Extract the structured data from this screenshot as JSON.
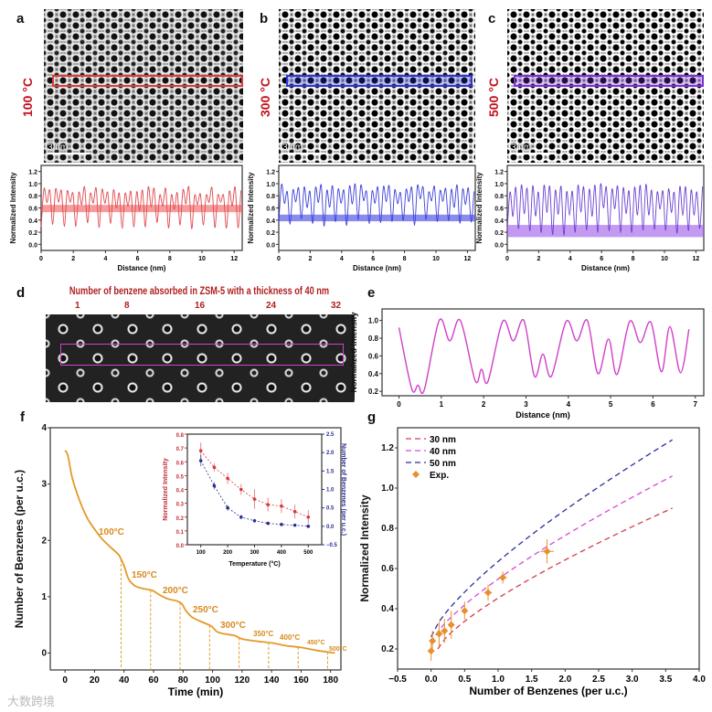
{
  "panels": {
    "a": "a",
    "b": "b",
    "c": "c",
    "d": "d",
    "e": "e",
    "f": "f",
    "g": "g"
  },
  "temps": [
    "100 °C",
    "300 °C",
    "500 °C"
  ],
  "scalebar": "3 nm",
  "roi_colors": [
    "#e03a3a",
    "#2f35d8",
    "#7b2fd8"
  ],
  "d_title": "Number of benzene absorbed in ZSM-5 with a thickness of 40 nm",
  "d_numbers": [
    "1",
    "8",
    "16",
    "24",
    "32"
  ],
  "watermark": "大数跨境",
  "chart_data": [
    {
      "id": "a",
      "type": "line",
      "xlabel": "Distance (nm)",
      "ylabel": "Normalized Intensity",
      "xlim": [
        0,
        12.5
      ],
      "ylim": [
        -0.1,
        1.3
      ],
      "xticks": [
        0,
        2,
        4,
        6,
        8,
        10,
        12
      ],
      "yticks": [
        0.0,
        0.2,
        0.4,
        0.6,
        0.8,
        1.0,
        1.2
      ],
      "band": [
        0.53,
        0.65
      ],
      "color": "#e0474c",
      "band_color": "#f05a5a",
      "profile": {
        "period_nm": 0.72,
        "peak": 0.95,
        "trough": 0.25
      }
    },
    {
      "id": "b",
      "type": "line",
      "xlabel": "Distance (nm)",
      "ylabel": "Normalized Intensity",
      "xlim": [
        0,
        12.5
      ],
      "ylim": [
        -0.1,
        1.3
      ],
      "xticks": [
        0,
        2,
        4,
        6,
        8,
        10,
        12
      ],
      "yticks": [
        0.0,
        0.2,
        0.4,
        0.6,
        0.8,
        1.0,
        1.2
      ],
      "band": [
        0.38,
        0.49
      ],
      "color": "#3a3fd8",
      "band_color": "#3a3fe0",
      "profile": {
        "period_nm": 0.72,
        "peak": 1.0,
        "trough": 0.3
      }
    },
    {
      "id": "c",
      "type": "line",
      "xlabel": "Distance (nm)",
      "ylabel": "Normalized Intensity",
      "xlim": [
        0,
        12.5
      ],
      "ylim": [
        -0.1,
        1.3
      ],
      "xticks": [
        0,
        2,
        4,
        6,
        8,
        10,
        12
      ],
      "yticks": [
        0.0,
        0.2,
        0.4,
        0.6,
        0.8,
        1.0,
        1.2
      ],
      "band": [
        0.12,
        0.32
      ],
      "color": "#6a3ed0",
      "band_color": "#9b55e8",
      "profile": {
        "period_nm": 0.72,
        "peak": 1.0,
        "trough": 0.15
      }
    },
    {
      "id": "e",
      "type": "line",
      "xlabel": "Distance (nm)",
      "ylabel": "Normalized Intensity",
      "xlim": [
        -0.4,
        7.2
      ],
      "ylim": [
        0.15,
        1.13
      ],
      "xticks": [
        0,
        1,
        2,
        3,
        4,
        5,
        6,
        7
      ],
      "yticks": [
        0.2,
        0.4,
        0.6,
        0.8,
        1.0
      ],
      "color": "#d040c8",
      "x": [
        0,
        0.3,
        0.45,
        0.6,
        0.95,
        1.2,
        1.45,
        1.8,
        1.95,
        2.1,
        2.45,
        2.7,
        2.95,
        3.2,
        3.4,
        3.6,
        3.95,
        4.2,
        4.45,
        4.7,
        4.95,
        5.15,
        5.45,
        5.7,
        5.95,
        6.2,
        6.4,
        6.65,
        6.85
      ],
      "y": [
        0.92,
        0.23,
        0.27,
        0.22,
        1.0,
        0.77,
        1.0,
        0.32,
        0.45,
        0.31,
        0.99,
        0.77,
        1.0,
        0.37,
        0.62,
        0.37,
        0.99,
        0.77,
        1.0,
        0.4,
        0.79,
        0.39,
        0.99,
        0.75,
        0.98,
        0.42,
        0.93,
        0.41,
        0.9
      ]
    },
    {
      "id": "f",
      "type": "line",
      "xlabel": "Time (min)",
      "ylabel": "Number of Benzenes (per u.c.)",
      "xlim": [
        -10,
        187
      ],
      "ylim": [
        -0.3,
        4
      ],
      "xticks": [
        0,
        20,
        40,
        60,
        80,
        100,
        120,
        140,
        160,
        180
      ],
      "yticks": [
        0,
        1,
        2,
        3,
        4
      ],
      "color": "#e39a2a",
      "x": [
        0,
        2,
        5,
        10,
        15,
        20,
        25,
        30,
        35,
        37,
        40,
        43,
        47,
        52,
        58,
        60,
        65,
        70,
        75,
        79,
        82,
        86,
        92,
        99,
        103,
        108,
        115,
        120,
        130,
        140,
        150,
        160,
        170,
        183
      ],
      "y": [
        3.6,
        3.5,
        3.1,
        2.7,
        2.4,
        2.2,
        2.03,
        1.9,
        1.78,
        1.72,
        1.55,
        1.32,
        1.2,
        1.15,
        1.12,
        1.1,
        1.02,
        0.96,
        0.93,
        0.88,
        0.75,
        0.64,
        0.56,
        0.48,
        0.38,
        0.34,
        0.31,
        0.25,
        0.21,
        0.18,
        0.13,
        0.1,
        0.05,
        0.0
      ],
      "steps": [
        {
          "t": 38,
          "label": "100°C"
        },
        {
          "t": 58,
          "label": "150°C"
        },
        {
          "t": 78,
          "label": "200°C"
        },
        {
          "t": 98,
          "label": "250°C"
        },
        {
          "t": 118,
          "label": "300°C"
        },
        {
          "t": 138,
          "label": "350°C"
        },
        {
          "t": 158,
          "label": "400°C"
        },
        {
          "t": 178,
          "label": "450°C"
        },
        {
          "t": 183,
          "label": "500°C"
        }
      ]
    },
    {
      "id": "f_inset",
      "type": "scatter",
      "xlabel": "Temperature (°C)",
      "ylabel": "Normalized Intensity",
      "ylabel_right": "Number of Benzenes (per u.c.)",
      "xlim": [
        50,
        550
      ],
      "ylim": [
        0,
        0.8
      ],
      "ylim_right": [
        -0.5,
        2.5
      ],
      "xticks": [
        100,
        200,
        300,
        400,
        500
      ],
      "yticks": [
        0.0,
        0.1,
        0.2,
        0.3,
        0.4,
        0.5,
        0.6,
        0.7,
        0.8
      ],
      "yticks_right": [
        -0.5,
        0.0,
        0.5,
        1.0,
        1.5,
        2.0,
        2.5
      ],
      "x": [
        100,
        150,
        200,
        250,
        300,
        350,
        400,
        450,
        500
      ],
      "series": [
        {
          "name": "Normalized Intensity",
          "color": "#d9373f",
          "values": [
            0.68,
            0.56,
            0.48,
            0.4,
            0.33,
            0.29,
            0.28,
            0.24,
            0.2
          ],
          "err": [
            0.06,
            0.03,
            0.04,
            0.04,
            0.07,
            0.05,
            0.05,
            0.05,
            0.05
          ]
        },
        {
          "name": "Number of Benzenes",
          "color": "#2a2f8f",
          "values": [
            1.78,
            1.1,
            0.5,
            0.25,
            0.15,
            0.08,
            0.05,
            0.03,
            0.0
          ],
          "err": [
            0.15,
            0.1,
            0.08,
            0.06,
            0.05,
            0.03,
            0.03,
            0.03,
            0.03
          ]
        }
      ]
    },
    {
      "id": "g",
      "type": "scatter",
      "xlabel": "Number of Benzenes (per u.c.)",
      "ylabel": "Normalized Intensity",
      "xlim": [
        -0.5,
        4.0
      ],
      "ylim": [
        0.1,
        1.3
      ],
      "xticks": [
        -0.5,
        0.0,
        0.5,
        1.0,
        1.5,
        2.0,
        2.5,
        3.0,
        3.5,
        4.0
      ],
      "yticks": [
        0.2,
        0.4,
        0.6,
        0.8,
        1.0,
        1.2
      ],
      "lines": [
        {
          "name": "30 nm",
          "color": "#d0404a",
          "x0": 0.1,
          "y0": 0.2,
          "x1": 3.6,
          "y1": 0.9
        },
        {
          "name": "40 nm",
          "color": "#d44ad8",
          "x0": 0.0,
          "y0": 0.23,
          "x1": 3.6,
          "y1": 1.06
        },
        {
          "name": "50 nm",
          "color": "#2a2f9a",
          "x0": 0.0,
          "y0": 0.26,
          "x1": 3.6,
          "y1": 1.24
        }
      ],
      "exp": {
        "name": "Exp.",
        "color": "#e8902e",
        "x": [
          0.0,
          0.02,
          0.12,
          0.2,
          0.3,
          0.5,
          0.85,
          1.07,
          1.73
        ],
        "y": [
          0.19,
          0.24,
          0.275,
          0.29,
          0.32,
          0.39,
          0.48,
          0.555,
          0.685
        ],
        "yerr": [
          0.05,
          0.05,
          0.06,
          0.06,
          0.07,
          0.045,
          0.04,
          0.03,
          0.06
        ],
        "xerr": [
          0.02,
          0.02,
          0.02,
          0.02,
          0.02,
          0.04,
          0.06,
          0.06,
          0.1
        ]
      }
    }
  ]
}
